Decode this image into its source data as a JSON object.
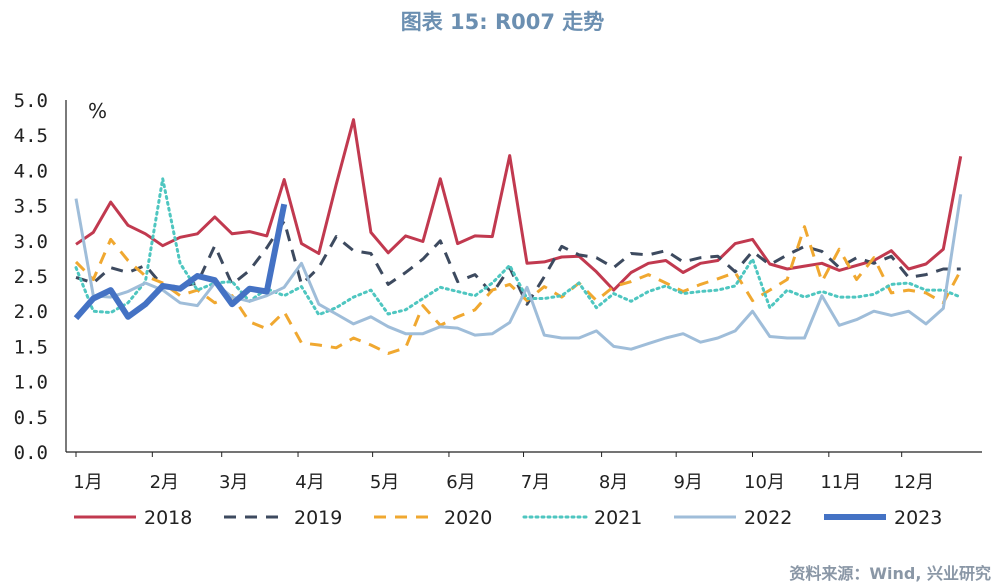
{
  "title": "图表 15: R007 走势",
  "source": "资料来源：Wind, 兴业研究",
  "chart_data": {
    "type": "line",
    "ylabel": "%",
    "ylim": [
      0,
      5.0
    ],
    "yticks": [
      "0.0",
      "0.5",
      "1.0",
      "1.5",
      "2.0",
      "2.5",
      "3.0",
      "3.5",
      "4.0",
      "4.5",
      "5.0"
    ],
    "xlim": [
      1,
      53
    ],
    "x_ticks": [
      {
        "label": "1月",
        "week": 1
      },
      {
        "label": "2月",
        "week": 5.4
      },
      {
        "label": "3月",
        "week": 9.4
      },
      {
        "label": "4月",
        "week": 13.8
      },
      {
        "label": "5月",
        "week": 18.1
      },
      {
        "label": "6月",
        "week": 22.5
      },
      {
        "label": "7月",
        "week": 26.8
      },
      {
        "label": "8月",
        "week": 31.3
      },
      {
        "label": "9月",
        "week": 35.6
      },
      {
        "label": "10月",
        "week": 40
      },
      {
        "label": "11月",
        "week": 44.4
      },
      {
        "label": "12月",
        "week": 48.6
      }
    ],
    "series": [
      {
        "name": "2018",
        "color": "#c1394f",
        "dash": "solid",
        "width": 3,
        "values": [
          2.95,
          3.12,
          3.55,
          3.22,
          3.1,
          2.93,
          3.05,
          3.1,
          3.34,
          3.1,
          3.13,
          3.07,
          3.87,
          2.96,
          2.82,
          3.8,
          4.72,
          3.12,
          2.83,
          3.07,
          2.99,
          3.88,
          2.96,
          3.07,
          3.06,
          4.21,
          2.68,
          2.7,
          2.77,
          2.78,
          2.56,
          2.3,
          2.55,
          2.68,
          2.72,
          2.55,
          2.68,
          2.72,
          2.96,
          3.02,
          2.67,
          2.6,
          2.64,
          2.68,
          2.58,
          2.65,
          2.72,
          2.86,
          2.6,
          2.67,
          2.88,
          4.2
        ]
      },
      {
        "name": "2019",
        "color": "#3d4a5f",
        "dash": "dashed",
        "width": 3,
        "values": [
          2.48,
          2.4,
          2.62,
          2.55,
          2.65,
          2.36,
          2.35,
          2.4,
          2.93,
          2.38,
          2.58,
          2.9,
          3.28,
          2.38,
          2.62,
          3.06,
          2.86,
          2.82,
          2.38,
          2.55,
          2.74,
          3.0,
          2.42,
          2.52,
          2.25,
          2.62,
          2.1,
          2.49,
          2.92,
          2.8,
          2.76,
          2.62,
          2.82,
          2.8,
          2.86,
          2.7,
          2.76,
          2.78,
          2.56,
          2.85,
          2.66,
          2.8,
          2.92,
          2.85,
          2.62,
          2.76,
          2.68,
          2.78,
          2.48,
          2.52,
          2.6,
          2.6
        ]
      },
      {
        "name": "2020",
        "color": "#f0a830",
        "dash": "dashed",
        "width": 3,
        "values": [
          2.7,
          2.45,
          3.02,
          2.72,
          2.5,
          2.4,
          2.22,
          2.3,
          2.12,
          2.22,
          1.85,
          1.75,
          1.99,
          1.55,
          1.52,
          1.48,
          1.62,
          1.52,
          1.4,
          1.48,
          2.08,
          1.8,
          1.92,
          2.02,
          2.3,
          2.38,
          2.15,
          2.35,
          2.2,
          2.4,
          2.15,
          2.35,
          2.42,
          2.52,
          2.4,
          2.28,
          2.38,
          2.46,
          2.55,
          2.15,
          2.3,
          2.45,
          3.2,
          2.42,
          2.88,
          2.45,
          2.76,
          2.26,
          2.3,
          2.26,
          2.12,
          2.58
        ]
      },
      {
        "name": "2021",
        "color": "#4ec6c0",
        "dash": "dotted",
        "width": 3,
        "values": [
          2.62,
          2.0,
          1.98,
          2.12,
          2.42,
          3.88,
          2.68,
          2.3,
          2.4,
          2.42,
          2.14,
          2.32,
          2.22,
          2.35,
          1.95,
          2.05,
          2.2,
          2.3,
          1.96,
          2.02,
          2.18,
          2.34,
          2.28,
          2.22,
          2.4,
          2.65,
          2.18,
          2.18,
          2.22,
          2.4,
          2.05,
          2.25,
          2.14,
          2.28,
          2.36,
          2.25,
          2.28,
          2.3,
          2.36,
          2.74,
          2.05,
          2.3,
          2.2,
          2.28,
          2.2,
          2.2,
          2.24,
          2.38,
          2.4,
          2.3,
          2.3,
          2.2
        ]
      },
      {
        "name": "2022",
        "color": "#9fbdd9",
        "dash": "solid",
        "width": 3,
        "values": [
          3.6,
          2.22,
          2.2,
          2.28,
          2.4,
          2.3,
          2.12,
          2.08,
          2.4,
          2.2,
          2.14,
          2.22,
          2.34,
          2.68,
          2.1,
          1.96,
          1.82,
          1.92,
          1.78,
          1.68,
          1.68,
          1.78,
          1.76,
          1.66,
          1.68,
          1.84,
          2.34,
          1.66,
          1.62,
          1.62,
          1.72,
          1.5,
          1.46,
          1.54,
          1.62,
          1.68,
          1.56,
          1.62,
          1.72,
          2.0,
          1.64,
          1.62,
          1.62,
          2.22,
          1.8,
          1.88,
          2.0,
          1.94,
          2.0,
          1.82,
          2.04,
          3.66
        ]
      },
      {
        "name": "2023",
        "color": "#4472c4",
        "dash": "solid",
        "width": 6,
        "values": [
          1.9,
          2.18,
          2.3,
          1.92,
          2.1,
          2.36,
          2.32,
          2.5,
          2.44,
          2.1,
          2.32,
          2.28,
          3.52
        ]
      }
    ],
    "legend": {
      "placement": "bottom",
      "entries": [
        "2018",
        "2019",
        "2020",
        "2021",
        "2022",
        "2023"
      ]
    }
  }
}
